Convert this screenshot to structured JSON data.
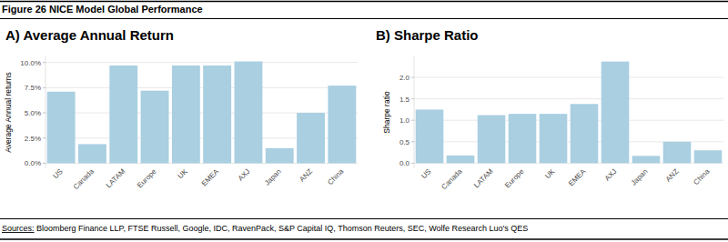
{
  "header": {
    "title": "Figure 26 NICE Model Global Performance"
  },
  "chart_data": [
    {
      "type": "bar",
      "title": "A) Average Annual Return",
      "y_label": "Average Annual returns",
      "categories": [
        "US",
        "Canada",
        "LATAM",
        "Europe",
        "UK",
        "EMEA",
        "AXJ",
        "Japan",
        "ANZ",
        "China"
      ],
      "values": [
        7.1,
        1.9,
        9.7,
        7.2,
        9.7,
        9.7,
        10.1,
        1.5,
        5.0,
        7.7
      ],
      "color": "#a9cfe1",
      "ylim": [
        -0.5,
        10.6
      ],
      "yticks": [
        {
          "value": 0,
          "label": "0.0%"
        },
        {
          "value": 2.5,
          "label": "2.5%"
        },
        {
          "value": 5,
          "label": "5.0%"
        },
        {
          "value": 7.5,
          "label": "7.5%"
        },
        {
          "value": 10,
          "label": "10.0%"
        }
      ],
      "grid": true
    },
    {
      "type": "bar",
      "title": "B) Sharpe Ratio",
      "y_label": "Sharpe ratio",
      "categories": [
        "US",
        "Canada",
        "LATAM",
        "Europe",
        "UK",
        "EMEA",
        "AXJ",
        "Japan",
        "ANZ",
        "China"
      ],
      "values": [
        1.25,
        0.18,
        1.12,
        1.15,
        1.15,
        1.38,
        2.37,
        0.17,
        0.5,
        0.3
      ],
      "color": "#a9cfe1",
      "ylim": [
        -0.12,
        2.49
      ],
      "yticks": [
        {
          "value": 0,
          "label": "0.0"
        },
        {
          "value": 0.5,
          "label": "0.5"
        },
        {
          "value": 1,
          "label": "1.0"
        },
        {
          "value": 1.5,
          "label": "1.5"
        },
        {
          "value": 2,
          "label": "2.0"
        }
      ],
      "grid": true
    }
  ],
  "footer": {
    "sources_label": "Sources:",
    "sources": " Bloomberg Finance LLP, FTSE Russell, Google, IDC, RavenPack, S&P Capital IQ, Thomson Reuters, SEC, Wolfe Research Luo's QES"
  }
}
